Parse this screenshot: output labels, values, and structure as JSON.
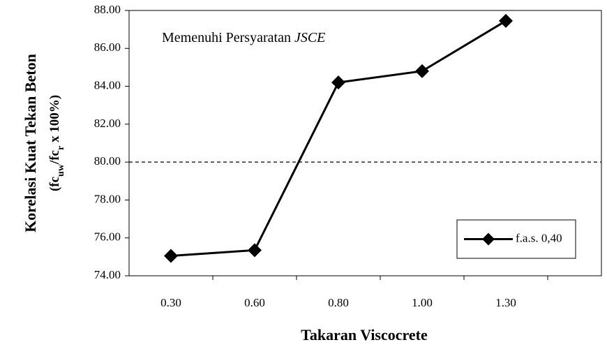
{
  "chart_data": {
    "type": "line",
    "categories": [
      "0.30",
      "0.60",
      "0.80",
      "1.00",
      "1.30"
    ],
    "series": [
      {
        "name": "f.a.s. 0,40",
        "color": "#000000",
        "values": [
          75.05,
          75.35,
          84.2,
          84.8,
          87.45
        ]
      }
    ],
    "ylim": [
      74,
      88
    ],
    "yticks": [
      {
        "value": 74,
        "label": "74.00"
      },
      {
        "value": 76,
        "label": "76.00"
      },
      {
        "value": 78,
        "label": "78.00"
      },
      {
        "value": 80,
        "label": "80.00"
      },
      {
        "value": 82,
        "label": "82.00"
      },
      {
        "value": 84,
        "label": "84.00"
      },
      {
        "value": 86,
        "label": "86.00"
      },
      {
        "value": 88,
        "label": "88.00"
      }
    ],
    "reference_line": 80,
    "annotation": {
      "text": "Memenuhi Persyaratan",
      "emphasis": "JSCE"
    },
    "xlabel": "Takaran Viscocrete",
    "ylabel": {
      "line1": "Korelasi Kuat Tekan Beton",
      "line2": [
        {
          "text": "(fc"
        },
        {
          "text": "uw",
          "sub": true
        },
        {
          "text": "/fc"
        },
        {
          "text": "r",
          "sub": true
        },
        {
          "text": " x 100%)"
        }
      ]
    },
    "legend": "lower right",
    "grid": false
  }
}
